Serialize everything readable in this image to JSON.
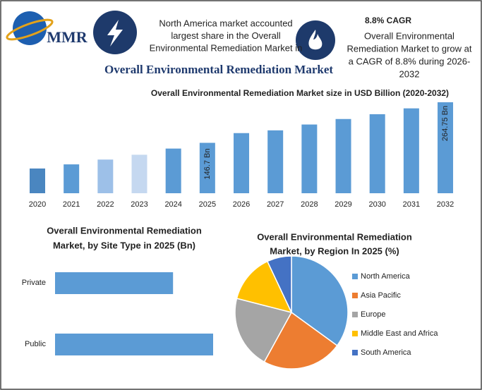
{
  "header": {
    "logo": "MMR",
    "note_left": [
      "North America market accounted",
      "largest share in the Overall",
      "Environmental Remediation Market in"
    ],
    "cagr": "8.8% CAGR",
    "note_right": [
      "Overall Environmental",
      "Remediation Market to grow at",
      "a CAGR of 8.8% during 2026-",
      "2032"
    ],
    "title": "Overall Environmental Remediation Market"
  },
  "chart_data": [
    {
      "type": "bar",
      "title": "Overall Environmental Remediation Market size in USD Billion (2020-2032)",
      "categories": [
        "2020",
        "2021",
        "2022",
        "2023",
        "2024",
        "2025",
        "2026",
        "2027",
        "2028",
        "2029",
        "2030",
        "2031",
        "2032"
      ],
      "values": [
        72,
        84,
        98,
        112,
        130,
        146.7,
        175,
        183,
        200,
        216,
        230,
        247,
        264.75
      ],
      "value_labels": [
        null,
        null,
        null,
        null,
        null,
        "146.7 Bn",
        null,
        null,
        null,
        null,
        null,
        null,
        "264.75 Bn"
      ],
      "colors": [
        "#4a86c0",
        "#5b9bd5",
        "#9dc0e8",
        "#c5d8f0",
        "#5b9bd5",
        "#5b9bd5",
        "#5b9bd5",
        "#5b9bd5",
        "#5b9bd5",
        "#5b9bd5",
        "#5b9bd5",
        "#5b9bd5",
        "#5b9bd5"
      ]
    },
    {
      "type": "hbar",
      "title": [
        "Overall Environmental Remediation",
        "Market, by Site Type in 2025 (Bn)"
      ],
      "categories": [
        "Private",
        "Public"
      ],
      "values": [
        62.7,
        84
      ],
      "color": "#5b9bd5"
    },
    {
      "type": "pie",
      "title": [
        "Overall Environmental Remediation",
        "Market, by Region In 2025 (%)"
      ],
      "categories": [
        "North America",
        "Asia Pacific",
        "Europe",
        "Middle East and Africa",
        "South America"
      ],
      "values": [
        35,
        23,
        21,
        14,
        7
      ],
      "colors": [
        "#5b9bd5",
        "#ed7d31",
        "#a5a5a5",
        "#ffc000",
        "#4472c4"
      ]
    }
  ]
}
